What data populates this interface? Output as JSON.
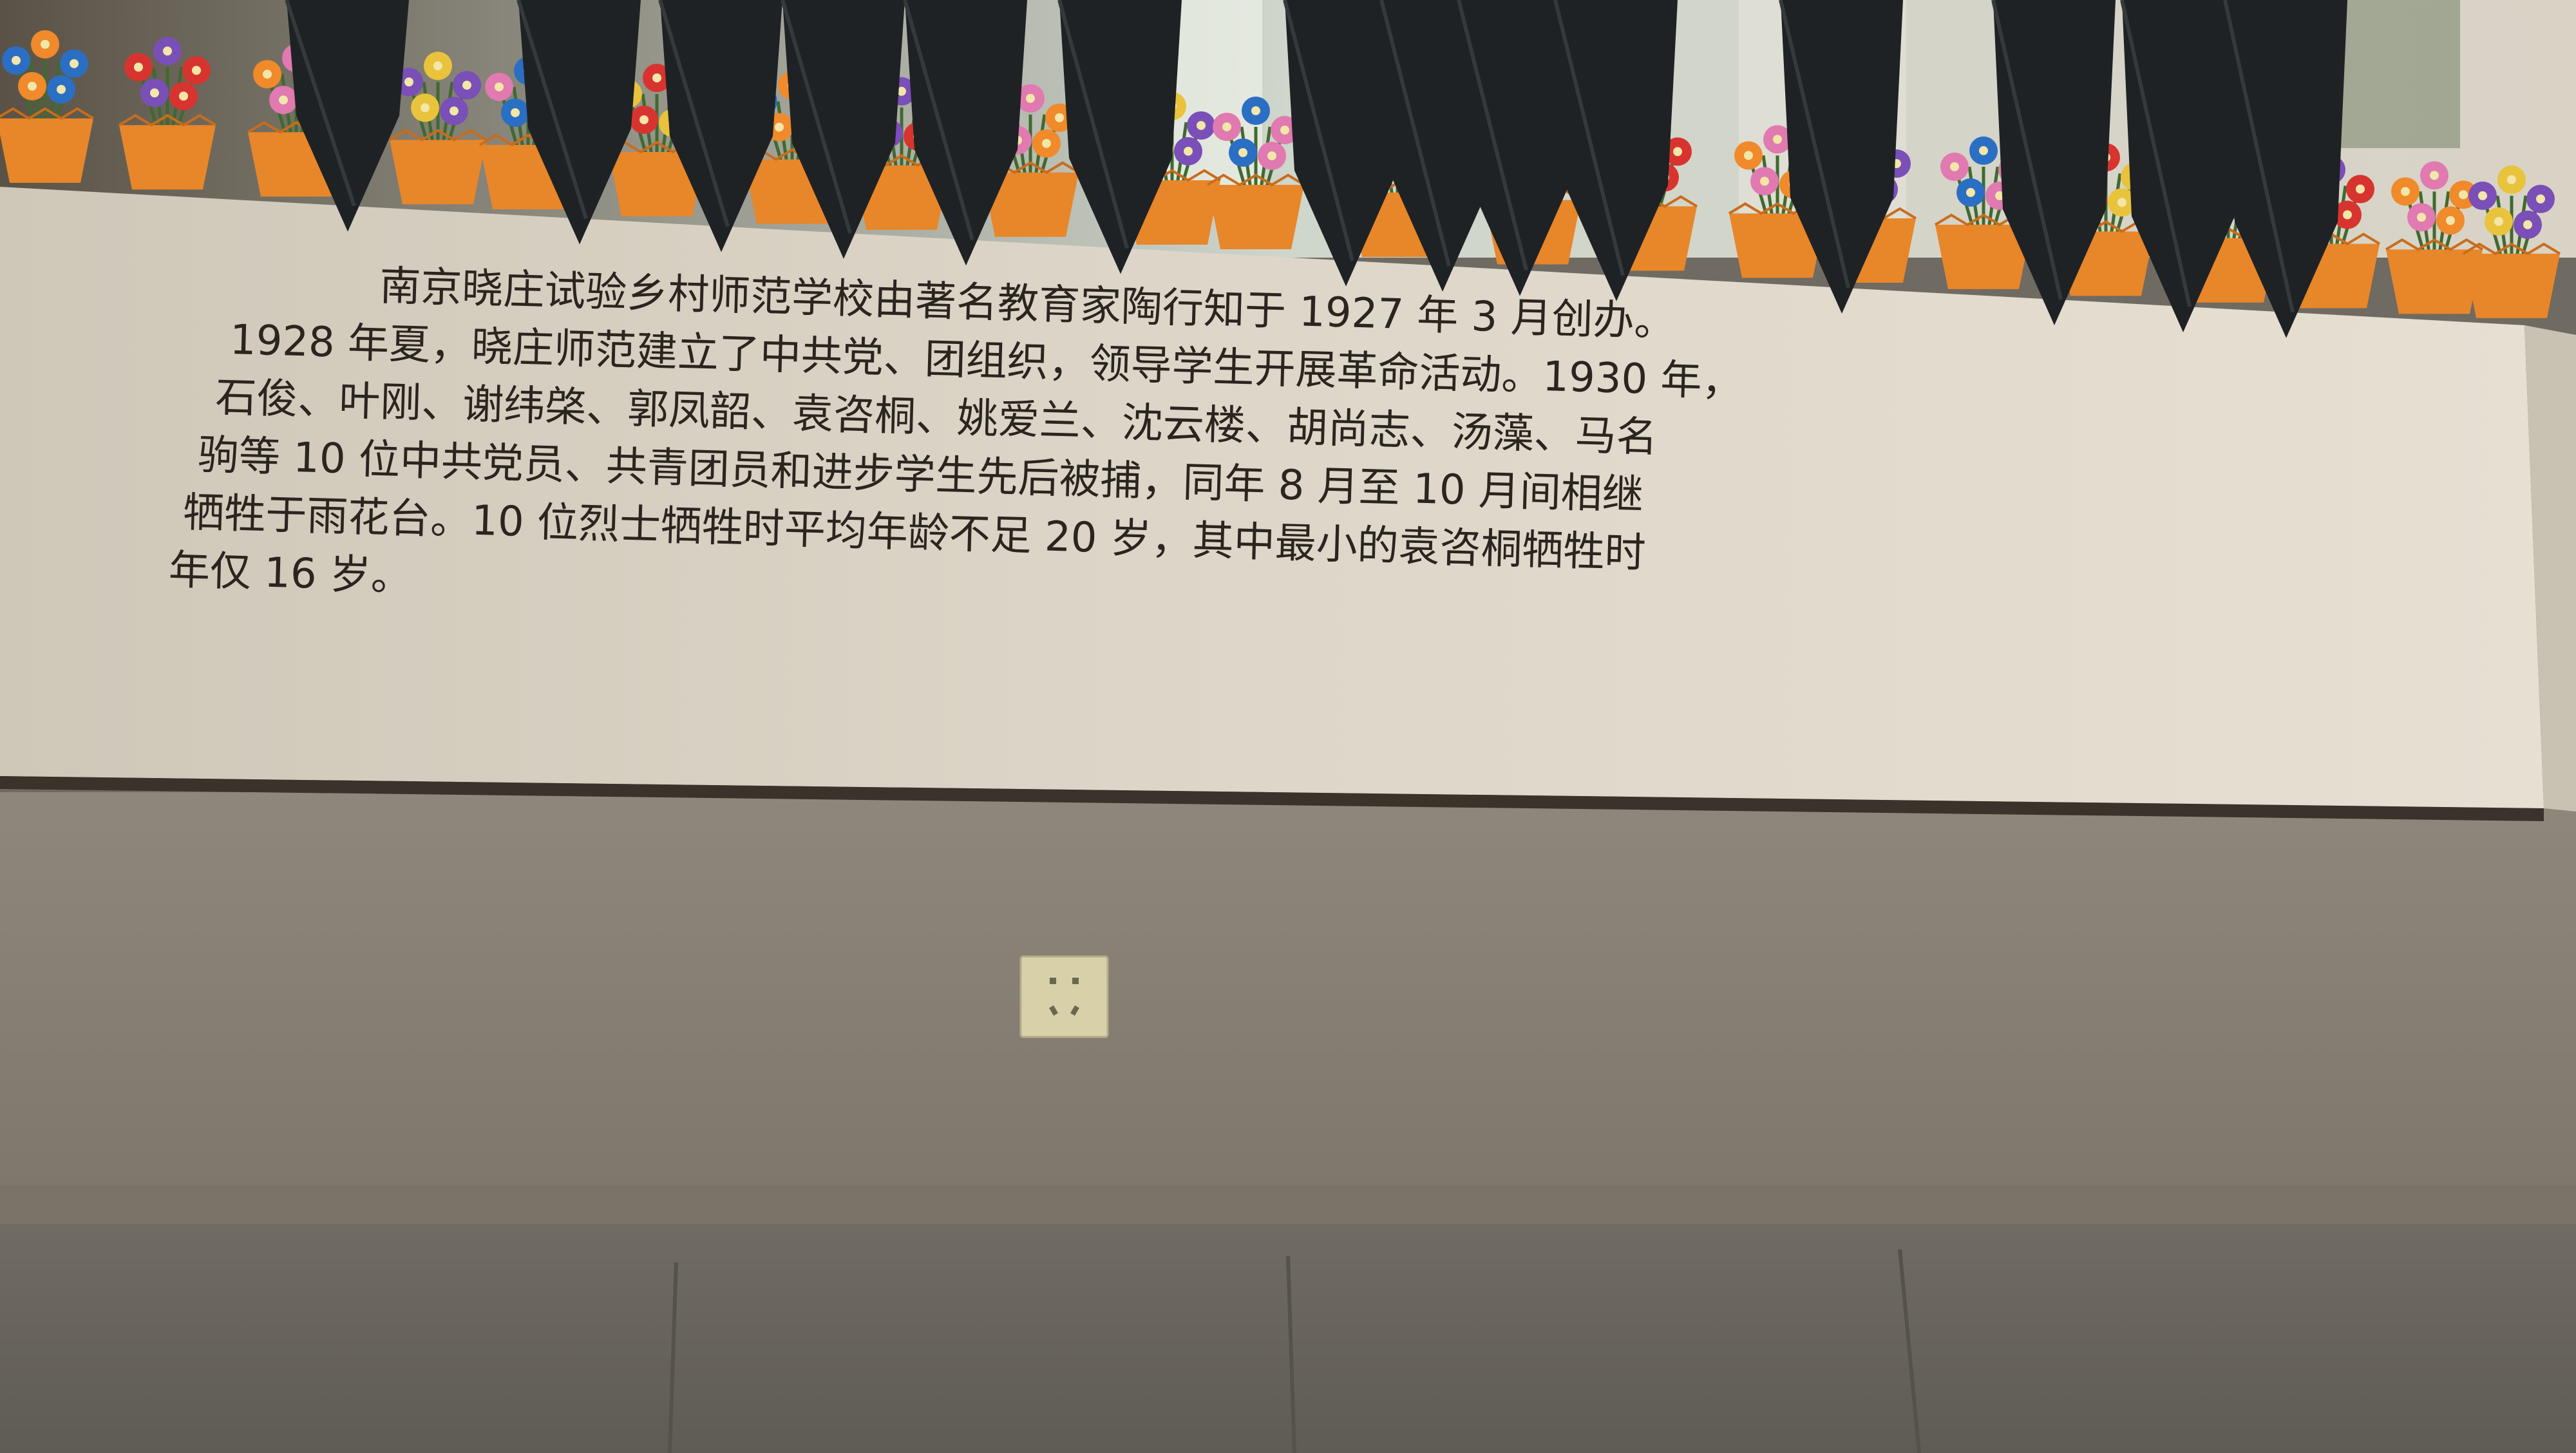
{
  "plaque": {
    "lines": [
      "南京晓庄试验乡村师范学校由著名教育家陶行知于 1927 年 3 月创办。",
      "1928 年夏，晓庄师范建立了中共党、团组织，领导学生开展革命活动。1930 年，",
      "石俊、叶刚、谢纬棨、郭凤韶、袁咨桐、姚爱兰、沈云楼、胡尚志、汤藻、马名",
      "驹等 10 位中共党员、共青团员和进步学生先后被捕，同年 8 月至 10 月间相继",
      "牺牲于雨花台。10 位烈士牺牲时平均年龄不足 20 岁，其中最小的袁咨桐牺牲时",
      "年仅 16 岁。"
    ]
  },
  "flowers": {
    "pot_color": "#e8862a",
    "wrap_color": "#1f2224",
    "bloom_colors": [
      "#2b6fc4",
      "#d8342f",
      "#f08a2a",
      "#7a4fb8",
      "#e07ab0",
      "#e9c33b"
    ]
  },
  "colors": {
    "plaque": "#ddd6c8",
    "wall": "#8a8276",
    "floor": "#6e6b63"
  }
}
